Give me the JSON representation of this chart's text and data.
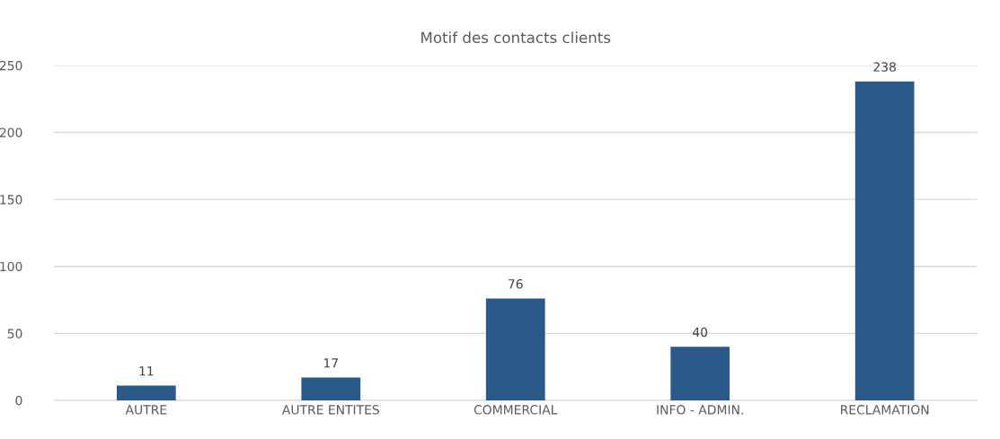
{
  "chart_data": {
    "type": "bar",
    "title": "Motif des contacts clients",
    "categories": [
      "AUTRE",
      "AUTRE ENTITES",
      "COMMERCIAL",
      "INFO - ADMIN.",
      "RECLAMATION"
    ],
    "values": [
      11,
      17,
      76,
      40,
      238
    ],
    "color": "#2b5a8a",
    "ylim": [
      0,
      250
    ],
    "yticks": [
      0,
      50,
      100,
      150,
      200,
      250
    ],
    "grid": "y",
    "data_labels": true
  }
}
